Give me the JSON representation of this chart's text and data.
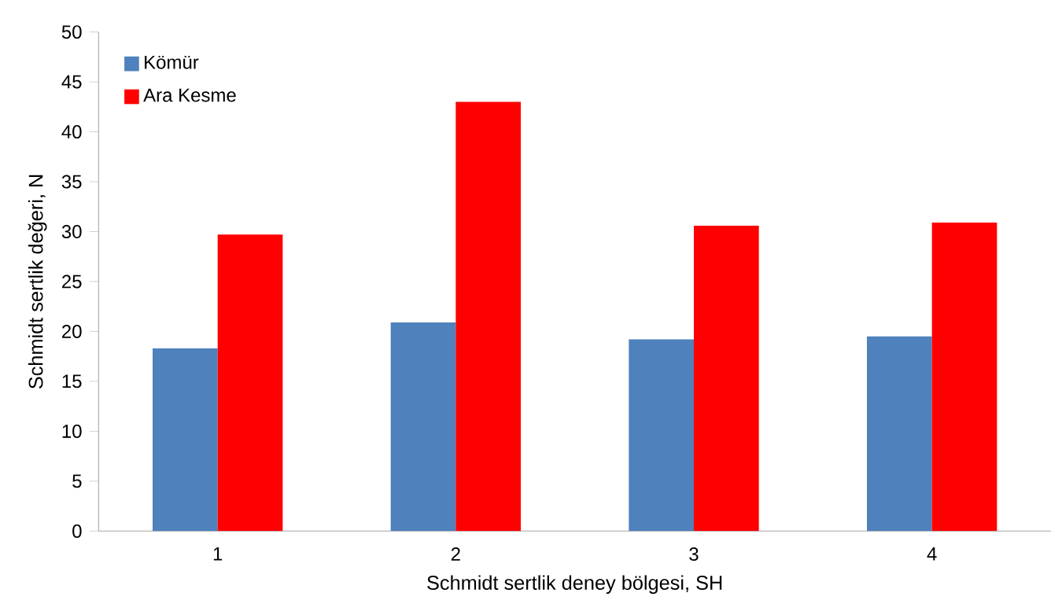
{
  "chart_data": {
    "type": "bar",
    "xlabel": "Schmidt sertlik deney bölgesi, SH",
    "ylabel": "Schmidt sertlik değeri, N",
    "categories": [
      "1",
      "2",
      "3",
      "4"
    ],
    "series": [
      {
        "name": "Kömür",
        "color": "#4f81bd",
        "values": [
          18.3,
          20.9,
          19.2,
          19.5
        ]
      },
      {
        "name": "Ara Kesme",
        "color": "#ff0000",
        "values": [
          29.7,
          43.0,
          30.6,
          30.9
        ]
      }
    ],
    "ylim": [
      0,
      50
    ],
    "yticks": [
      0,
      5,
      10,
      15,
      20,
      25,
      30,
      35,
      40,
      45,
      50
    ],
    "grid": false,
    "legend": "top left"
  }
}
